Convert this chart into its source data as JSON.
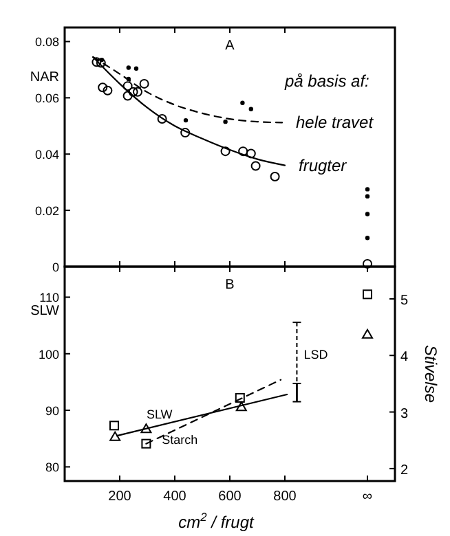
{
  "chart_data": [
    {
      "type": "scatter",
      "ylabel": "NAR",
      "xlim": [
        0,
        1200
      ],
      "ylim": [
        0,
        0.085
      ],
      "xticks": [
        200,
        400,
        600,
        800
      ],
      "yticks": [
        0,
        0.02,
        0.04,
        0.06,
        0.08
      ],
      "tick_labels": "y",
      "grid": false,
      "annotations": [
        "A",
        "på basis af:"
      ],
      "series": [
        {
          "type": "scatter",
          "marker": "circle",
          "color": "#000000",
          "x": [
            116,
            132,
            138,
            156,
            229,
            229,
            249,
            265,
            289,
            354,
            438,
            584,
            648,
            677,
            694,
            764,
            1100
          ],
          "values": [
            0.0727,
            0.0724,
            0.0637,
            0.0626,
            0.0642,
            0.0607,
            0.0621,
            0.0621,
            0.065,
            0.0525,
            0.0476,
            0.041,
            0.041,
            0.0402,
            0.0358,
            0.032,
            0.001
          ]
        },
        {
          "type": "scatter",
          "marker": "dot",
          "color": "#000000",
          "x": [
            135,
            232,
            260,
            232,
            440,
            584,
            646,
            677,
            1100,
            1100,
            1100,
            1100
          ],
          "values": [
            0.0735,
            0.0707,
            0.0704,
            0.0667,
            0.052,
            0.0515,
            0.0582,
            0.056,
            0.0275,
            0.025,
            0.0187,
            0.0102
          ]
        },
        {
          "type": "line",
          "name": "hele travet",
          "line_style": "dashed",
          "color": "#000000",
          "x": [
            103,
            200,
            300,
            400,
            500,
            600,
            700,
            790
          ],
          "values": [
            0.0745,
            0.0685,
            0.062,
            0.0575,
            0.0545,
            0.0525,
            0.0515,
            0.0512
          ]
        },
        {
          "type": "line",
          "name": "frugter",
          "line_style": "solid",
          "color": "#000000",
          "x": [
            103,
            200,
            300,
            400,
            500,
            600,
            700,
            800
          ],
          "values": [
            0.0745,
            0.065,
            0.0565,
            0.05,
            0.0455,
            0.0415,
            0.0382,
            0.036
          ]
        }
      ]
    },
    {
      "type": "scatter",
      "ylabel": "SLW",
      "y2label": "Stivelse",
      "xlabel": "cm$^{2}$ / frugt",
      "xlim": [
        0,
        1200
      ],
      "ylim": [
        77.5,
        115.4
      ],
      "y2lim": [
        1.78,
        5.57
      ],
      "xticks": [
        200,
        400,
        600,
        800,
        {
          "value": 1100,
          "label": "∞"
        }
      ],
      "yticks": [
        80,
        90,
        100,
        110
      ],
      "y2ticks": [
        2,
        3,
        4,
        5
      ],
      "grid": false,
      "annotations": [
        "B",
        "LSD"
      ],
      "series": [
        {
          "type": "scatter",
          "marker": "triangle",
          "color": "#000000",
          "x": [
            183,
            296,
            642,
            1100
          ],
          "values": [
            85.3,
            86.7,
            90.6,
            103.4
          ]
        },
        {
          "type": "scatter",
          "marker": "square",
          "axis": "y2",
          "color": "#000000",
          "x": [
            180,
            296,
            637,
            1100
          ],
          "values": [
            2.76,
            2.44,
            3.25,
            5.08
          ]
        },
        {
          "type": "line",
          "name": "SLW",
          "line_style": "solid",
          "color": "#000000",
          "x": [
            190,
            808
          ],
          "values": [
            85.5,
            92.8
          ]
        },
        {
          "type": "line",
          "name": "Starch",
          "line_style": "dashed",
          "axis": "y2",
          "color": "#000000",
          "x": [
            296,
            785
          ],
          "values": [
            2.44,
            3.57
          ]
        }
      ]
    }
  ]
}
